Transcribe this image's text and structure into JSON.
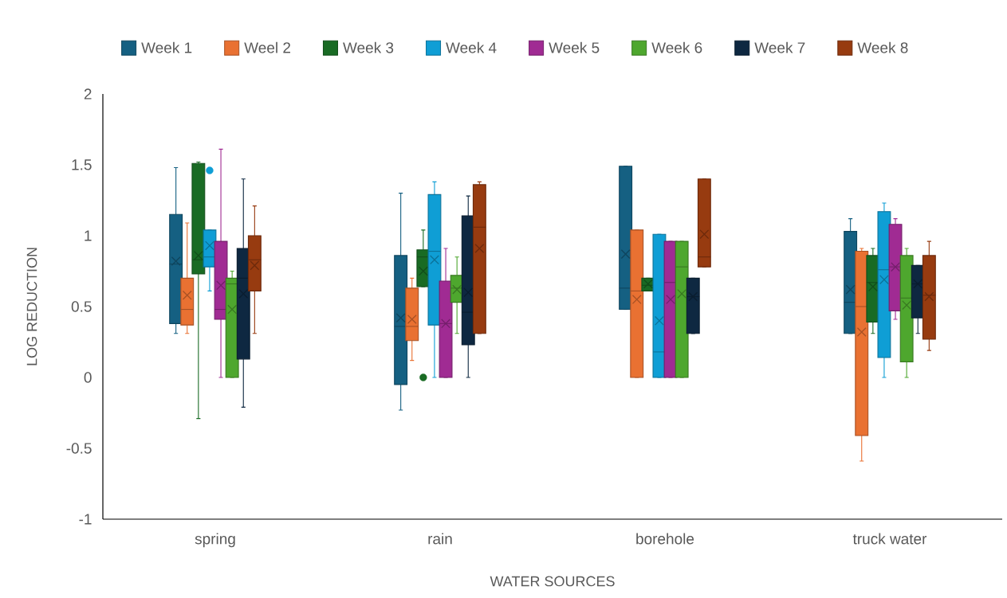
{
  "chart_data": {
    "type": "box",
    "xlabel": "WATER SOURCES",
    "ylabel": "LOG REDUCTION",
    "legend": "top",
    "categories": [
      "spring",
      "rain",
      "borehole",
      "truck water"
    ],
    "ylim": [
      -1,
      2
    ],
    "yticks": [
      -1,
      -0.5,
      0,
      0.5,
      1,
      1.5,
      2
    ],
    "series": [
      {
        "name": "Week 1",
        "color": "#156082",
        "boxes": [
          {
            "low": 0.31,
            "q1": 0.38,
            "median": 0.8,
            "q3": 1.15,
            "high": 1.48,
            "mean": 0.82
          },
          {
            "low": -0.23,
            "q1": -0.05,
            "median": 0.36,
            "q3": 0.86,
            "high": 1.3,
            "mean": 0.42
          },
          {
            "low": 0.48,
            "q1": 0.48,
            "median": 0.63,
            "q3": 1.49,
            "high": 1.49,
            "mean": 0.87
          },
          {
            "low": 0.31,
            "q1": 0.31,
            "median": 0.53,
            "q3": 1.03,
            "high": 1.12,
            "mean": 0.62
          }
        ]
      },
      {
        "name": "Weel 2",
        "color": "#e97132",
        "boxes": [
          {
            "low": 0.31,
            "q1": 0.37,
            "median": 0.48,
            "q3": 0.7,
            "high": 1.09,
            "mean": 0.58
          },
          {
            "low": 0.12,
            "q1": 0.26,
            "median": 0.36,
            "q3": 0.63,
            "high": 0.7,
            "mean": 0.41
          },
          {
            "low": 0,
            "q1": 0,
            "median": 0.61,
            "q3": 1.04,
            "high": 1.04,
            "mean": 0.55
          },
          {
            "low": -0.59,
            "q1": -0.41,
            "median": 0.5,
            "q3": 0.89,
            "high": 0.91,
            "mean": 0.32
          }
        ]
      },
      {
        "name": "Week 3",
        "color": "#196b24",
        "boxes": [
          {
            "low": -0.29,
            "q1": 0.73,
            "median": 0.83,
            "q3": 1.51,
            "high": 1.52,
            "mean": 0.86
          },
          {
            "low": 0.64,
            "q1": 0.64,
            "median": 0.85,
            "q3": 0.9,
            "high": 1.04,
            "mean": 0.75,
            "outliers": [
              0
            ]
          },
          {
            "low": 0.61,
            "q1": 0.61,
            "median": 0.65,
            "q3": 0.7,
            "high": 0.7,
            "mean": 0.66
          },
          {
            "low": 0.31,
            "q1": 0.39,
            "median": 0.67,
            "q3": 0.86,
            "high": 0.91,
            "mean": 0.64
          }
        ]
      },
      {
        "name": "Week 4",
        "color": "#0f9ed5",
        "boxes": [
          {
            "low": 0.61,
            "q1": 0.78,
            "median": 0.85,
            "q3": 1.04,
            "high": 1.04,
            "mean": 0.93,
            "outliers": [
              1.46
            ]
          },
          {
            "low": 0,
            "q1": 0.37,
            "median": 0.89,
            "q3": 1.29,
            "high": 1.38,
            "mean": 0.83
          },
          {
            "low": 0,
            "q1": 0,
            "median": 0.18,
            "q3": 1.01,
            "high": 1.01,
            "mean": 0.4
          },
          {
            "low": 0,
            "q1": 0.14,
            "median": 0.76,
            "q3": 1.17,
            "high": 1.23,
            "mean": 0.69
          }
        ]
      },
      {
        "name": "Week 5",
        "color": "#a02b93",
        "boxes": [
          {
            "low": 0,
            "q1": 0.41,
            "median": 0.48,
            "q3": 0.96,
            "high": 1.61,
            "mean": 0.65
          },
          {
            "low": 0,
            "q1": 0,
            "median": 0.38,
            "q3": 0.68,
            "high": 0.91,
            "mean": 0.38
          },
          {
            "low": 0,
            "q1": 0,
            "median": 0.67,
            "q3": 0.96,
            "high": 0.96,
            "mean": 0.55
          },
          {
            "low": 0.41,
            "q1": 0.47,
            "median": 0.78,
            "q3": 1.08,
            "high": 1.12,
            "mean": 0.78
          }
        ]
      },
      {
        "name": "Week 6",
        "color": "#4ea72e",
        "boxes": [
          {
            "low": 0,
            "q1": 0,
            "median": 0.66,
            "q3": 0.7,
            "high": 0.75,
            "mean": 0.48
          },
          {
            "low": 0.31,
            "q1": 0.53,
            "median": 0.63,
            "q3": 0.72,
            "high": 0.85,
            "mean": 0.62
          },
          {
            "low": 0,
            "q1": 0,
            "median": 0.78,
            "q3": 0.96,
            "high": 0.96,
            "mean": 0.59
          },
          {
            "low": 0,
            "q1": 0.11,
            "median": 0.56,
            "q3": 0.86,
            "high": 0.91,
            "mean": 0.51
          }
        ]
      },
      {
        "name": "Week 7",
        "color": "#0e2841",
        "boxes": [
          {
            "low": -0.21,
            "q1": 0.13,
            "median": 0.7,
            "q3": 0.91,
            "high": 1.4,
            "mean": 0.59
          },
          {
            "low": 0,
            "q1": 0.23,
            "median": 0.46,
            "q3": 1.14,
            "high": 1.28,
            "mean": 0.6
          },
          {
            "low": 0.31,
            "q1": 0.31,
            "median": 0.57,
            "q3": 0.7,
            "high": 0.7,
            "mean": 0.57
          },
          {
            "low": 0.31,
            "q1": 0.42,
            "median": 0.66,
            "q3": 0.79,
            "high": 0.79,
            "mean": 0.66
          }
        ]
      },
      {
        "name": "Week 8",
        "color": "#973b10",
        "boxes": [
          {
            "low": 0.31,
            "q1": 0.61,
            "median": 0.83,
            "q3": 1.0,
            "high": 1.21,
            "mean": 0.79
          },
          {
            "low": 0.31,
            "q1": 0.31,
            "median": 1.06,
            "q3": 1.36,
            "high": 1.38,
            "mean": 0.91
          },
          {
            "low": 0.78,
            "q1": 0.78,
            "median": 0.85,
            "q3": 1.4,
            "high": 1.4,
            "mean": 1.01
          },
          {
            "low": 0.19,
            "q1": 0.27,
            "median": 0.58,
            "q3": 0.86,
            "high": 0.96,
            "mean": 0.57
          }
        ]
      }
    ]
  }
}
